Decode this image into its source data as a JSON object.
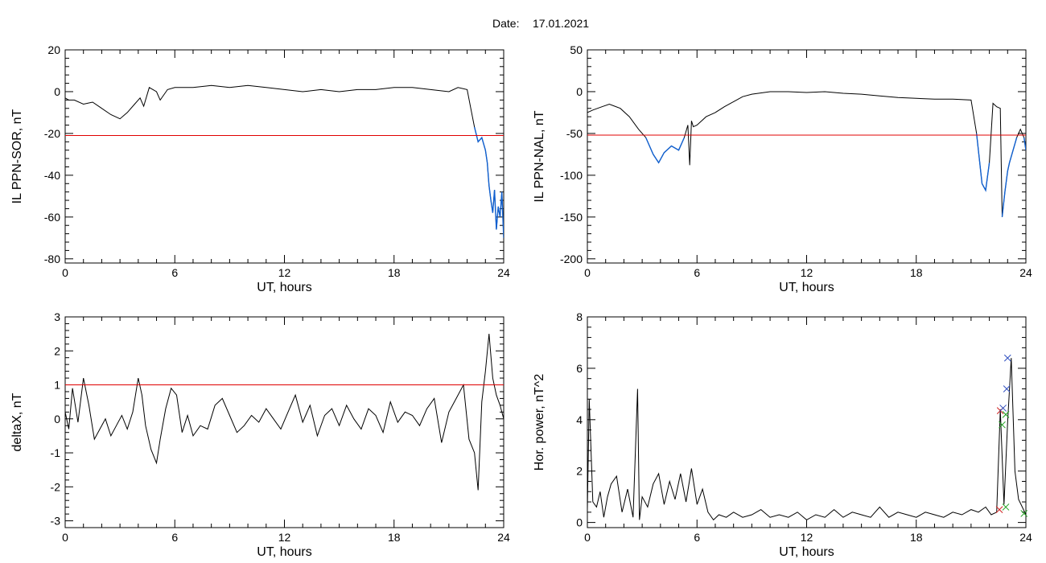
{
  "header": {
    "date_label": "Date:",
    "date_value": "17.01.2021"
  },
  "chart_data": [
    {
      "id": "sor",
      "type": "line",
      "ylabel": "IL PPN-SOR, nT",
      "xlabel": "UT, hours",
      "xlim": [
        0,
        24
      ],
      "ylim": [
        -82,
        20
      ],
      "xticks": [
        0,
        6,
        12,
        18,
        24
      ],
      "yticks": [
        -80,
        -60,
        -40,
        -20,
        0,
        20
      ],
      "threshold": -21,
      "threshold_color": "#e00000",
      "line_color": "#000000",
      "highlight_color": "#1060d0",
      "series": [
        {
          "x": [
            0,
            0.2,
            0.5,
            1,
            1.5,
            2,
            2.5,
            3,
            3.4,
            3.8,
            4.1,
            4.3,
            4.6,
            5,
            5.2,
            5.6,
            6,
            7,
            8,
            9,
            10,
            11,
            12,
            13,
            14,
            15,
            16,
            17,
            18,
            19,
            20,
            21,
            21.5,
            22,
            22.2,
            22.4,
            22.6,
            22.8,
            23.0,
            23.1,
            23.2,
            23.3,
            23.4,
            23.5,
            23.6,
            23.7,
            23.8,
            23.9,
            24
          ],
          "y": [
            -3,
            -4,
            -4,
            -6,
            -5,
            -8,
            -11,
            -13,
            -10,
            -6,
            -3,
            -7,
            2,
            0,
            -4,
            1,
            2,
            2,
            3,
            2,
            3,
            2,
            1,
            0,
            1,
            0,
            1,
            1,
            2,
            2,
            1,
            0,
            2,
            1,
            -8,
            -17,
            -24,
            -22,
            -28,
            -34,
            -45,
            -52,
            -58,
            -47,
            -66,
            -55,
            -60,
            -48,
            -70
          ]
        }
      ],
      "highlight_from": 22.4
    },
    {
      "id": "nal",
      "type": "line",
      "ylabel": "IL PPN-NAL, nT",
      "xlabel": "UT, hours",
      "xlim": [
        0,
        24
      ],
      "ylim": [
        -205,
        50
      ],
      "xticks": [
        0,
        6,
        12,
        18,
        24
      ],
      "yticks": [
        -200,
        -150,
        -100,
        -50,
        0,
        50
      ],
      "threshold": -52,
      "threshold_color": "#e00000",
      "line_color": "#000000",
      "highlight_color": "#1060d0",
      "series": [
        {
          "x": [
            0,
            0.3,
            0.8,
            1.2,
            1.8,
            2.3,
            2.8,
            3.2,
            3.6,
            3.9,
            4.2,
            4.6,
            5.0,
            5.3,
            5.5,
            5.6,
            5.7,
            5.8,
            6.0,
            6.5,
            7,
            7.5,
            8,
            8.5,
            9,
            10,
            11,
            12,
            13,
            14,
            15,
            16,
            17,
            18,
            19,
            20,
            21,
            21.3,
            21.6,
            21.8,
            22.0,
            22.2,
            22.4,
            22.6,
            22.7,
            22.85,
            23.0,
            23.1,
            23.3,
            23.5,
            23.7,
            23.9,
            24
          ],
          "y": [
            -25,
            -22,
            -18,
            -15,
            -20,
            -30,
            -45,
            -55,
            -75,
            -85,
            -73,
            -65,
            -70,
            -55,
            -40,
            -88,
            -35,
            -42,
            -40,
            -30,
            -25,
            -18,
            -12,
            -6,
            -3,
            0,
            0,
            -1,
            0,
            -2,
            -3,
            -5,
            -7,
            -8,
            -9,
            -9,
            -10,
            -50,
            -110,
            -118,
            -85,
            -14,
            -18,
            -20,
            -150,
            -120,
            -95,
            -85,
            -70,
            -55,
            -45,
            -55,
            -70
          ]
        }
      ],
      "highlight_from": 2.9,
      "highlight_ranges": [
        [
          2.9,
          5.8
        ],
        [
          21.3,
          24
        ]
      ]
    },
    {
      "id": "deltax",
      "type": "line",
      "ylabel": "deltaX, nT",
      "xlabel": "UT, hours",
      "xlim": [
        0,
        24
      ],
      "ylim": [
        -3.2,
        3
      ],
      "xticks": [
        0,
        6,
        12,
        18,
        24
      ],
      "yticks": [
        -3,
        -2,
        -1,
        0,
        1,
        2,
        3
      ],
      "threshold": 1.0,
      "threshold_color": "#e00000",
      "line_color": "#000000",
      "series": [
        {
          "x": [
            0,
            0.2,
            0.4,
            0.7,
            1.0,
            1.3,
            1.6,
            1.9,
            2.2,
            2.5,
            2.8,
            3.1,
            3.4,
            3.7,
            4.0,
            4.2,
            4.4,
            4.7,
            5.0,
            5.2,
            5.5,
            5.8,
            6.1,
            6.4,
            6.7,
            7.0,
            7.4,
            7.8,
            8.2,
            8.6,
            9.0,
            9.4,
            9.8,
            10.2,
            10.6,
            11.0,
            11.4,
            11.8,
            12.2,
            12.6,
            13.0,
            13.4,
            13.8,
            14.2,
            14.6,
            15.0,
            15.4,
            15.8,
            16.2,
            16.6,
            17.0,
            17.4,
            17.8,
            18.2,
            18.6,
            19.0,
            19.4,
            19.8,
            20.2,
            20.6,
            21.0,
            21.4,
            21.8,
            22.1,
            22.4,
            22.6,
            22.8,
            23.0,
            23.2,
            23.4,
            23.6,
            23.8,
            24
          ],
          "y": [
            0.2,
            -0.3,
            0.9,
            -0.1,
            1.2,
            0.4,
            -0.6,
            -0.3,
            0.0,
            -0.5,
            -0.2,
            0.1,
            -0.3,
            0.2,
            1.2,
            0.7,
            -0.2,
            -0.9,
            -1.3,
            -0.6,
            0.3,
            0.9,
            0.7,
            -0.4,
            0.1,
            -0.5,
            -0.2,
            -0.3,
            0.4,
            0.6,
            0.1,
            -0.4,
            -0.2,
            0.1,
            -0.1,
            0.3,
            0.0,
            -0.3,
            0.2,
            0.7,
            -0.1,
            0.4,
            -0.5,
            0.1,
            0.3,
            -0.2,
            0.4,
            0.0,
            -0.3,
            0.3,
            0.1,
            -0.4,
            0.5,
            -0.1,
            0.2,
            0.1,
            -0.2,
            0.3,
            0.6,
            -0.7,
            0.2,
            0.6,
            1.0,
            -0.6,
            -1.0,
            -2.1,
            0.5,
            1.4,
            2.5,
            1.2,
            0.7,
            0.4,
            0.0
          ]
        }
      ]
    },
    {
      "id": "power",
      "type": "line",
      "ylabel": "Hor. power, nT^2",
      "xlabel": "UT, hours",
      "xlim": [
        0,
        24
      ],
      "ylim": [
        -0.2,
        8
      ],
      "xticks": [
        0,
        6,
        12,
        18,
        24
      ],
      "yticks": [
        0,
        2,
        4,
        6,
        8
      ],
      "line_color": "#000000",
      "series": [
        {
          "x": [
            0,
            0.1,
            0.3,
            0.5,
            0.7,
            0.9,
            1.1,
            1.3,
            1.6,
            1.9,
            2.2,
            2.5,
            2.75,
            2.85,
            3.0,
            3.3,
            3.6,
            3.9,
            4.2,
            4.5,
            4.8,
            5.1,
            5.4,
            5.7,
            6.0,
            6.3,
            6.6,
            6.9,
            7.2,
            7.6,
            8.0,
            8.5,
            9.0,
            9.5,
            10.0,
            10.5,
            11.0,
            11.5,
            12.0,
            12.5,
            13.0,
            13.5,
            14.0,
            14.5,
            15.0,
            15.5,
            16.0,
            16.5,
            17.0,
            17.5,
            18.0,
            18.5,
            19.0,
            19.5,
            20.0,
            20.5,
            21.0,
            21.4,
            21.8,
            22.1,
            22.4,
            22.6,
            22.8,
            23.0,
            23.2,
            23.4,
            23.6,
            23.8,
            24
          ],
          "y": [
            0.5,
            4.8,
            0.8,
            0.6,
            1.2,
            0.2,
            1.0,
            1.5,
            1.8,
            0.4,
            1.3,
            0.2,
            5.2,
            0.1,
            1.0,
            0.6,
            1.5,
            1.9,
            0.7,
            1.6,
            0.9,
            1.9,
            0.8,
            2.1,
            0.7,
            1.3,
            0.4,
            0.1,
            0.3,
            0.2,
            0.4,
            0.2,
            0.3,
            0.5,
            0.2,
            0.3,
            0.2,
            0.4,
            0.1,
            0.3,
            0.2,
            0.5,
            0.2,
            0.4,
            0.3,
            0.2,
            0.6,
            0.2,
            0.4,
            0.3,
            0.2,
            0.4,
            0.3,
            0.2,
            0.4,
            0.3,
            0.5,
            0.4,
            0.6,
            0.3,
            0.4,
            4.4,
            0.7,
            3.9,
            6.4,
            2.0,
            0.9,
            0.6,
            0.3
          ]
        }
      ],
      "markers": [
        {
          "x": 22.6,
          "y": 4.35,
          "color": "#d02020"
        },
        {
          "x": 22.75,
          "y": 4.45,
          "color": "#3050c0"
        },
        {
          "x": 22.9,
          "y": 4.2,
          "color": "#20a020"
        },
        {
          "x": 22.7,
          "y": 3.8,
          "color": "#20a020"
        },
        {
          "x": 23.0,
          "y": 6.4,
          "color": "#3050c0"
        },
        {
          "x": 22.95,
          "y": 5.2,
          "color": "#3050c0"
        },
        {
          "x": 22.9,
          "y": 0.6,
          "color": "#20a020"
        },
        {
          "x": 22.55,
          "y": 0.5,
          "color": "#d02020"
        },
        {
          "x": 23.9,
          "y": 0.35,
          "color": "#20a020"
        }
      ]
    }
  ]
}
